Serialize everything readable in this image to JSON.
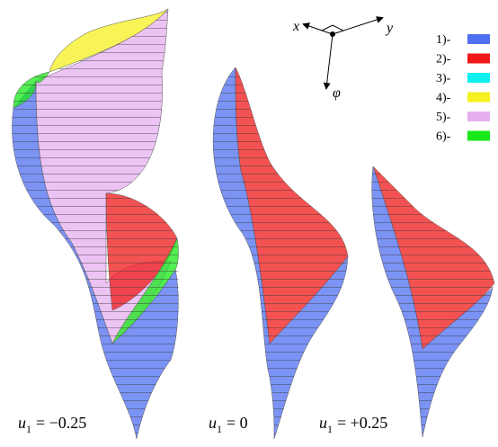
{
  "figure": {
    "axes": {
      "x": "x",
      "y": "y",
      "phi": "φ"
    },
    "legend": [
      {
        "label": "1)-",
        "color": "#4f6ff0"
      },
      {
        "label": "2)-",
        "color": "#f01818"
      },
      {
        "label": "3)-",
        "color": "#10f0f0"
      },
      {
        "label": "4)-",
        "color": "#f5f020"
      },
      {
        "label": "5)-",
        "color": "#e6b0f0"
      },
      {
        "label": "6)-",
        "color": "#18e818"
      }
    ],
    "captions": [
      {
        "symbol": "u",
        "subscript": "1",
        "value": "= −0.25"
      },
      {
        "symbol": "u",
        "subscript": "1",
        "value": "= 0"
      },
      {
        "symbol": "u",
        "subscript": "1",
        "value": "= +0.25"
      }
    ]
  }
}
